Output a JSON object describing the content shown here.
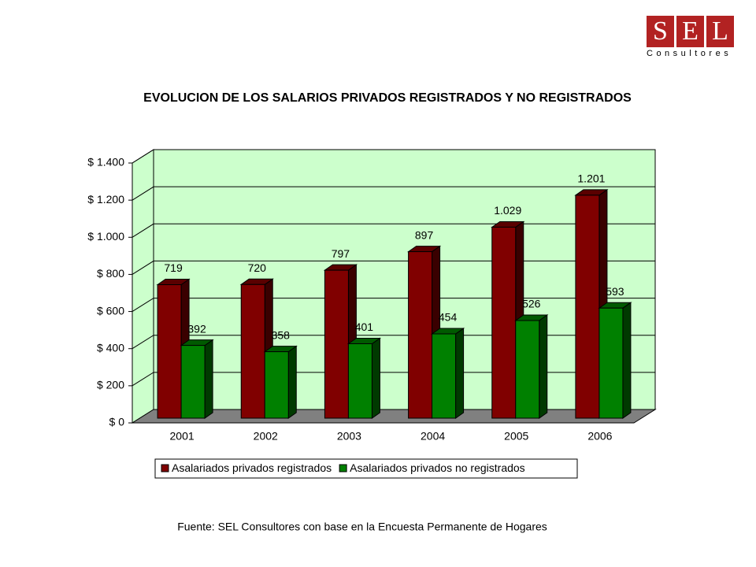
{
  "chart_data": {
    "type": "bar3d",
    "title": "EVOLUCION DE LOS SALARIOS PRIVADOS REGISTRADOS Y NO REGISTRADOS",
    "categories": [
      "2001",
      "2002",
      "2003",
      "2004",
      "2005",
      "2006"
    ],
    "series": [
      {
        "name": "Asalariados privados registrados",
        "color": "#800000",
        "values": [
          719,
          720,
          797,
          897,
          1029,
          1201
        ],
        "value_labels": [
          "719",
          "720",
          "797",
          "897",
          "1.029",
          "1.201"
        ]
      },
      {
        "name": "Asalariados privados no registrados",
        "color": "#008000",
        "values": [
          392,
          358,
          401,
          454,
          526,
          593
        ]
      }
    ],
    "ylim": [
      0,
      1400
    ],
    "yticks": [
      {
        "value": 0,
        "label": "$ 0"
      },
      {
        "value": 200,
        "label": "$ 200"
      },
      {
        "value": 400,
        "label": "$ 400"
      },
      {
        "value": 600,
        "label": "$ 600"
      },
      {
        "value": 800,
        "label": "$ 800"
      },
      {
        "value": 1000,
        "label": "$ 1.000"
      },
      {
        "value": 1200,
        "label": "$ 1.200"
      },
      {
        "value": 1400,
        "label": "$ 1.400"
      }
    ],
    "grid": true,
    "wall_color": "#ccffcc",
    "floor_color": "#808080"
  },
  "logo": {
    "letters": [
      "S",
      "E",
      "L"
    ],
    "subtitle": "Consultores"
  },
  "footer": "Fuente: SEL Consultores con base en la Encuesta Permanente de Hogares"
}
